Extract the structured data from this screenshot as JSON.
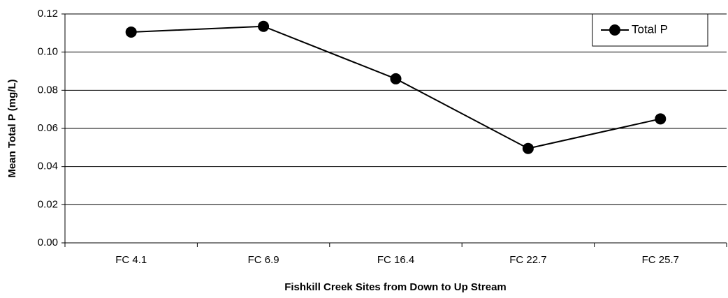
{
  "chart_data": {
    "type": "line",
    "xlabel": "Fishkill Creek Sites from Down to Up Stream",
    "ylabel": "Mean Total P (mg/L)",
    "categories": [
      "FC 4.1",
      "FC 6.9",
      "FC 16.4",
      "FC 22.7",
      "FC 25.7"
    ],
    "series": [
      {
        "name": "Total P",
        "color": "#000000",
        "values": [
          0.1105,
          0.1135,
          0.086,
          0.0495,
          0.065
        ]
      }
    ],
    "ylim": [
      0,
      0.12
    ],
    "yticks": [
      {
        "value": 0,
        "label": "0.00"
      },
      0.02,
      0.04,
      0.06,
      0.08,
      {
        "value": 0.1,
        "label": "0.10"
      },
      0.12
    ],
    "grid": true,
    "legend": "upper right"
  }
}
